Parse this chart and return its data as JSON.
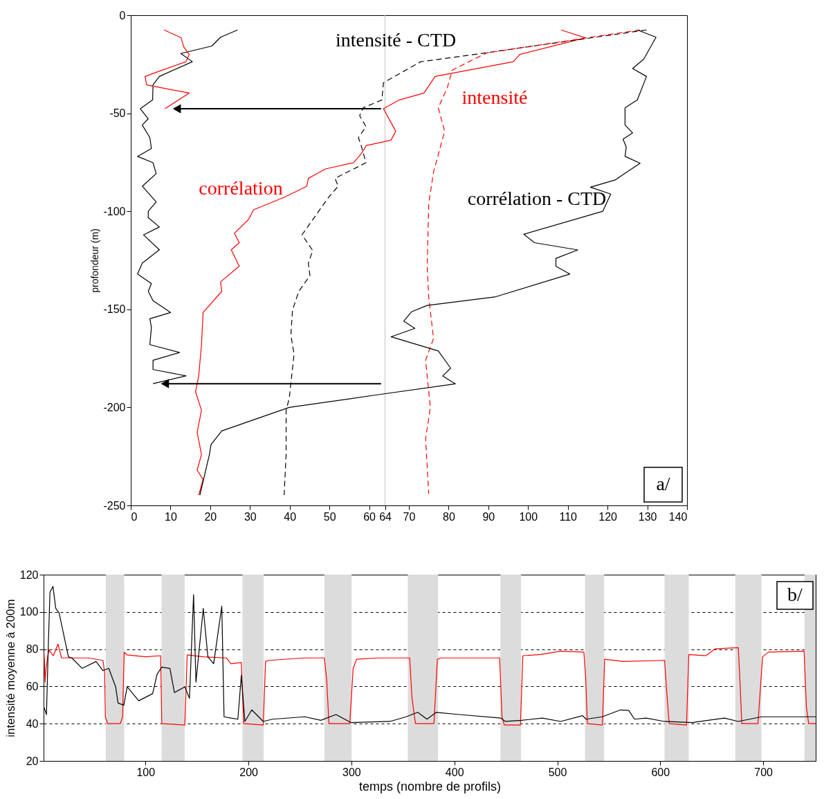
{
  "chart_data": [
    {
      "type": "line",
      "ylabel": "profondeur (m)",
      "xlim": [
        0,
        140
      ],
      "ylim": [
        -250,
        0
      ],
      "xticks": [
        0,
        10,
        20,
        30,
        40,
        50,
        60,
        64,
        70,
        80,
        90,
        100,
        110,
        120,
        130,
        140
      ],
      "yticks": [
        -250,
        -200,
        -150,
        -100,
        -50,
        0
      ],
      "grid": false,
      "ref_lines": [
        {
          "axis": "x",
          "value": 64,
          "color": "#c0c0c0"
        }
      ],
      "annotations": [
        "a/"
      ],
      "series": [
        {
          "color": "#000000",
          "x": [
            26.9,
            22.6,
            20.4,
            12.6,
            15.5,
            7.2,
            5.6,
            5.5,
            2.4,
            4.4,
            2.9,
            4.8,
            5.2,
            1.7,
            5.6,
            6.4,
            2.9,
            6.4,
            4.4,
            4.4,
            7.2,
            3.2,
            7.2,
            2.9,
            1.7,
            5.2,
            4.4,
            5.6,
            10.0,
            4.8,
            5.2,
            4.8,
            12.3,
            5.6,
            5.6,
            13.9,
            5.6
          ],
          "values": [
            -7.5,
            -11.2,
            -15.7,
            -19.5,
            -23.7,
            -31.2,
            -35.5,
            -43.2,
            -47.7,
            -52.8,
            -56,
            -62.4,
            -68,
            -72,
            -75.2,
            -80.8,
            -87.2,
            -95.2,
            -100,
            -103.2,
            -108,
            -112,
            -119.6,
            -126.4,
            -132,
            -136.8,
            -140.8,
            -145.6,
            -151.6,
            -154.8,
            -159.2,
            -168,
            -172,
            -176,
            -180.7,
            -183.9,
            -187.9
          ]
        },
        {
          "color": "#ff0000",
          "x": [
            8.4,
            12.7,
            13.3,
            14.7,
            13.9,
            6.8,
            3.6,
            4.0,
            14.7,
            8.6
          ],
          "values": [
            -7.5,
            -11.5,
            -16,
            -20,
            -23.7,
            -28.8,
            -31.2,
            -35.5,
            -39.7,
            -47.7
          ]
        },
        {
          "name": "corrélation",
          "color": "#ff0000",
          "x": [
            108.3,
            114.4,
            97.9,
            96.3,
            76.6,
            73.8,
            67.6,
            63.6,
            66.7,
            65.5,
            62,
            59.3,
            58.1,
            56.1,
            49.0,
            44.7,
            44.3,
            38.7,
            30.9,
            29.7,
            26.1,
            27.3,
            25.3,
            27.3,
            22.6,
            22.9,
            18.2,
            17.8,
            17.1,
            16.3,
            17.8,
            16.7,
            17.8,
            16.7,
            18.2,
            17.1
          ],
          "values": [
            -7.5,
            -11.5,
            -20,
            -23.7,
            -31.2,
            -39.7,
            -43.2,
            -47.7,
            -59.2,
            -63.7,
            -65.3,
            -66.4,
            -70.4,
            -75.2,
            -78.4,
            -83.2,
            -87.2,
            -92.8,
            -99.2,
            -104,
            -111.2,
            -116,
            -119.6,
            -128,
            -136,
            -140.8,
            -151.6,
            -168,
            -184,
            -192,
            -201.5,
            -212.7,
            -224,
            -232,
            -236.7,
            -244.7
          ]
        },
        {
          "name": "intensité - CTD",
          "color": "#000000",
          "line_style": "dashed",
          "x": [
            129.8,
            86.5,
            73.0,
            63.6,
            63.2,
            58.5,
            57.6,
            59.2,
            57.3,
            58.1,
            59.2,
            51.4,
            52.2,
            49.8,
            43.1,
            45.8,
            44.7,
            45.1,
            42.3,
            40.7,
            40.3,
            41.1,
            39.9,
            39.1,
            39.1,
            38.6
          ],
          "values": [
            -7.5,
            -20,
            -23.7,
            -34.4,
            -43.2,
            -47.2,
            -51.2,
            -56.8,
            -62.4,
            -67.2,
            -75.2,
            -83.2,
            -87.2,
            -92.8,
            -112,
            -120,
            -126.4,
            -132.8,
            -140.8,
            -150.4,
            -163.2,
            -172.8,
            -195.2,
            -201.5,
            -224,
            -244.7
          ]
        },
        {
          "name": "intensité",
          "color": "#ff0000",
          "line_style": "dashed",
          "x": [
            128.2,
            114.9,
            89.6,
            80.9,
            79.7,
            77.4,
            79.0,
            76.2,
            75.0,
            74.6,
            75.0,
            76.2,
            74.2,
            75.4,
            74.2,
            75.0
          ],
          "values": [
            -7.5,
            -11.5,
            -19.2,
            -28,
            -36.8,
            -47.2,
            -59.2,
            -80,
            -96,
            -128,
            -144,
            -164.8,
            -176,
            -200,
            -216,
            -244
          ]
        },
        {
          "name": "corrélation - CTD",
          "color": "#000000",
          "x": [
            127.5,
            132.2,
            129.1,
            126.3,
            129.8,
            127.5,
            124.4,
            124.4,
            126.3,
            123.9,
            124.7,
            124.4,
            128.2,
            121.9,
            115.7,
            120.8,
            118.8,
            98.9,
            101.6,
            112.5,
            107.0,
            107.0,
            110.5,
            91.6,
            74.6,
            70.7,
            68.7,
            71.5,
            65.5,
            77.4,
            80.5,
            78.5,
            81.7,
            62.0,
            39.9,
            22.9,
            20.2,
            19.8,
            17.4
          ],
          "values": [
            -7.5,
            -11.2,
            -22.4,
            -27.2,
            -31.2,
            -43.2,
            -47.2,
            -56,
            -60,
            -63.2,
            -67.2,
            -72,
            -75.5,
            -84,
            -87.7,
            -91.2,
            -100,
            -111.7,
            -116,
            -119.7,
            -124,
            -128,
            -132,
            -143.7,
            -148,
            -151.2,
            -156,
            -159.7,
            -164,
            -171.2,
            -180,
            -184,
            -188,
            -193.6,
            -200,
            -212,
            -219,
            -224,
            -244.7
          ]
        }
      ]
    },
    {
      "type": "line",
      "xlabel": "temps (nombre de profils)",
      "ylabel": "intensité moyenne à 200m",
      "xlim": [
        1,
        751
      ],
      "ylim": [
        20,
        120
      ],
      "xticks": [
        100,
        200,
        300,
        400,
        500,
        600,
        700
      ],
      "yticks": [
        20,
        40,
        60,
        80,
        100,
        120
      ],
      "grid": "y",
      "annotations": [
        "b/"
      ],
      "bands": [
        {
          "axis": "x",
          "from": 61.4,
          "to": 79.3,
          "color": "#dcdcdc"
        },
        {
          "axis": "x",
          "from": 115.6,
          "to": 138,
          "color": "#dcdcdc"
        },
        {
          "axis": "x",
          "from": 194.2,
          "to": 214.8,
          "color": "#dcdcdc"
        },
        {
          "axis": "x",
          "from": 273.7,
          "to": 300.2,
          "color": "#dcdcdc"
        },
        {
          "axis": "x",
          "from": 354.8,
          "to": 384.2,
          "color": "#dcdcdc"
        },
        {
          "axis": "x",
          "from": 444.7,
          "to": 464.8,
          "color": "#dcdcdc"
        },
        {
          "axis": "x",
          "from": 526.9,
          "to": 545.5,
          "color": "#dcdcdc"
        },
        {
          "axis": "x",
          "from": 604.2,
          "to": 627.7,
          "color": "#dcdcdc"
        },
        {
          "axis": "x",
          "from": 672.9,
          "to": 698.3,
          "color": "#dcdcdc"
        },
        {
          "axis": "x",
          "from": 740.1,
          "to": 751,
          "color": "#dcdcdc"
        }
      ],
      "series": [
        {
          "color": "#ff0000",
          "x": [
            1.6,
            2.5,
            3.4,
            6,
            10.5,
            15,
            18.4,
            26.2,
            44.1,
            58.7,
            60.3,
            61,
            63.2,
            75.5,
            77.7,
            79.3,
            82.2,
            100.1,
            114.7,
            115.8,
            138.2,
            140.5,
            156.1,
            178.5,
            183,
            193.1,
            195.3,
            214.4,
            216.6,
            220,
            254.7,
            273.7,
            276,
            278.2,
            298.4,
            301.7,
            305,
            326.4,
            356.6,
            358.9,
            362.2,
            380.2,
            383.5,
            386.9,
            444,
            446.3,
            448.5,
            464.2,
            466.5,
            483.3,
            503.5,
            525.8,
            527.6,
            529.2,
            543.8,
            546,
            563.9,
            604.2,
            606.4,
            608.7,
            625.5,
            627.7,
            644.5,
            653.4,
            675.8,
            677.6,
            679.2,
            694.9,
            699.4,
            705,
            739.7,
            742,
            744.2,
            751
          ],
          "values": [
            77.1,
            62.3,
            69.7,
            79.6,
            76.5,
            82.7,
            75.3,
            75.3,
            75.3,
            74,
            67.2,
            43.7,
            40,
            40,
            43.7,
            78.4,
            76.9,
            75.9,
            76.5,
            40,
            39.3,
            76.9,
            75.9,
            75.3,
            72.2,
            72.8,
            40,
            39.3,
            73.4,
            74,
            75.3,
            75.3,
            63.5,
            40,
            40,
            69.7,
            74.6,
            75.3,
            75.3,
            53.6,
            40,
            40,
            74.6,
            75.3,
            75.3,
            43.7,
            39.3,
            39.3,
            76.5,
            77.1,
            79,
            78.4,
            64.7,
            40,
            39.3,
            74.6,
            73.4,
            74,
            56.1,
            40,
            39.3,
            77.1,
            76.5,
            80.2,
            80.8,
            61,
            40,
            40,
            75.9,
            78.4,
            79,
            48.6,
            40,
            40
          ]
        },
        {
          "color": "#000000",
          "x": [
            1.6,
            3.8,
            5.6,
            7.2,
            10.1,
            12.8,
            16.1,
            25.1,
            28.4,
            38.5,
            52,
            58.7,
            64.3,
            71,
            73.3,
            78.9,
            82.2,
            93.4,
            106.9,
            111.3,
            115.8,
            123.7,
            128.1,
            138.2,
            142.7,
            146.7,
            149,
            156.1,
            160.6,
            166.2,
            174.1,
            176.3,
            183,
            189.7,
            193.1,
            196.5,
            203.2,
            214.4,
            223.3,
            254.7,
            270.3,
            285,
            299.4,
            337.5,
            353.2,
            364.4,
            373.4,
            382.4,
            404.8,
            445.1,
            449.6,
            465.3,
            485.4,
            503.3,
            524.6,
            527.9,
            543.6,
            561.5,
            569.4,
            575,
            586.2,
            604.2,
            631,
            662.4,
            675.8,
            698.3,
            739.7,
            751
          ],
          "values": [
            48.6,
            44.9,
            82.1,
            110.6,
            113.7,
            101.9,
            99.4,
            75.9,
            75.3,
            69.7,
            73.4,
            68.5,
            69.7,
            59.8,
            51.1,
            49.9,
            59.8,
            52.3,
            56.1,
            66.6,
            70.3,
            69.7,
            56.7,
            59.8,
            53.6,
            109.3,
            62.3,
            101.9,
            75.9,
            72.2,
            103.1,
            43.7,
            43,
            42.4,
            66,
            41.2,
            47.4,
            41.2,
            42.4,
            43.7,
            41.8,
            44.9,
            40.6,
            41.2,
            43.7,
            46.1,
            42.4,
            46.1,
            44.9,
            43,
            41.2,
            41.8,
            43,
            41.2,
            44.3,
            42.4,
            43.7,
            47.4,
            47.1,
            42.4,
            43,
            41.2,
            40.6,
            43,
            41.2,
            43.7,
            43.7,
            43.7
          ]
        }
      ]
    }
  ]
}
